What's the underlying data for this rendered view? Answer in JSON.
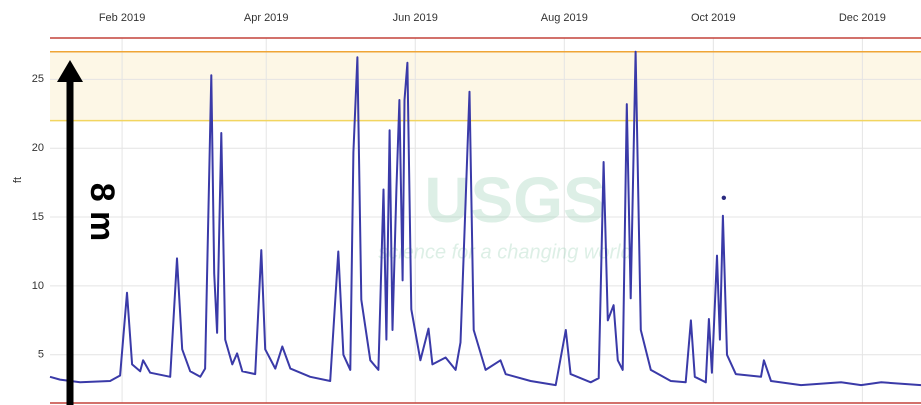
{
  "chart_data": {
    "type": "line",
    "y_label": "ft",
    "annotation": "8 m",
    "watermark": {
      "title": "USGS",
      "subtitle": "science for a changing world"
    },
    "xlim": [
      2.5,
      359
    ],
    "xticks": [
      {
        "value": 32,
        "label": "Feb 2019"
      },
      {
        "value": 91,
        "label": "Apr 2019"
      },
      {
        "value": 152,
        "label": "Jun 2019"
      },
      {
        "value": 213,
        "label": "Aug 2019"
      },
      {
        "value": 274,
        "label": "Oct 2019"
      },
      {
        "value": 335,
        "label": "Dec 2019"
      }
    ],
    "ylim": [
      1.5,
      28
    ],
    "yticks": [
      5,
      10,
      15,
      20,
      25
    ],
    "grid": true,
    "hlines": [
      {
        "value": 27,
        "color": "#efa536"
      },
      {
        "value": 22,
        "color": "#f2d560"
      }
    ],
    "band_color": "#fdf7e6",
    "series": [
      {
        "color": "#3a3aa8",
        "x": [
          2.5,
          6.6,
          14.8,
          27.1,
          31.2,
          34.0,
          36.1,
          39.4,
          40.6,
          43.5,
          51.7,
          54.5,
          56.6,
          59.9,
          64.0,
          66.0,
          68.5,
          69.7,
          70.9,
          72.6,
          74.2,
          77.1,
          79.1,
          81.2,
          86.5,
          89.0,
          90.6,
          94.7,
          97.6,
          100.9,
          109.0,
          117.2,
          120.5,
          122.6,
          125.4,
          126.7,
          128.3,
          129.9,
          133.6,
          136.9,
          139.0,
          140.2,
          141.5,
          142.7,
          144.3,
          145.5,
          146.8,
          147.6,
          148.8,
          150.4,
          154.1,
          157.4,
          159.0,
          164.4,
          168.5,
          170.5,
          172.2,
          174.2,
          175.9,
          180.8,
          186.9,
          189.0,
          199.2,
          209.5,
          213.6,
          215.6,
          223.8,
          227.1,
          229.1,
          230.8,
          233.2,
          234.9,
          236.9,
          238.6,
          240.2,
          242.2,
          244.3,
          248.4,
          256.6,
          262.7,
          264.8,
          266.4,
          270.9,
          272.2,
          273.4,
          275.5,
          276.7,
          277.9,
          279.6,
          283.2,
          293.5,
          294.7,
          297.6,
          309.9,
          326.3,
          334.5,
          342.7,
          359.0
        ],
        "values": [
          3.4,
          3.2,
          3.0,
          3.1,
          3.5,
          9.5,
          4.3,
          3.8,
          4.6,
          3.7,
          3.4,
          12.0,
          5.4,
          3.8,
          3.4,
          4.0,
          25.3,
          10.9,
          6.6,
          21.1,
          6.1,
          4.3,
          5.1,
          3.8,
          3.6,
          12.6,
          5.4,
          4.0,
          5.6,
          4.0,
          3.4,
          3.1,
          12.5,
          5.0,
          3.9,
          19.7,
          26.6,
          9.0,
          4.6,
          3.9,
          17.0,
          6.1,
          21.3,
          6.8,
          17.0,
          23.5,
          10.4,
          23.5,
          26.2,
          8.3,
          4.6,
          6.9,
          4.3,
          4.8,
          3.9,
          5.9,
          14.1,
          24.1,
          6.8,
          3.9,
          4.6,
          3.6,
          3.1,
          2.8,
          6.8,
          3.6,
          3.0,
          3.3,
          19.0,
          7.5,
          8.6,
          4.6,
          3.9,
          23.2,
          9.1,
          27.0,
          6.8,
          3.9,
          3.1,
          3.0,
          7.5,
          3.4,
          3.0,
          7.6,
          3.7,
          12.2,
          6.1,
          15.1,
          5.0,
          3.6,
          3.4,
          4.6,
          3.1,
          2.8,
          3.0,
          2.8,
          3.0,
          2.8
        ]
      },
      {
        "color": "#2a2a80",
        "marker": true,
        "x": [
          278.3
        ],
        "values": [
          16.4
        ]
      }
    ]
  }
}
